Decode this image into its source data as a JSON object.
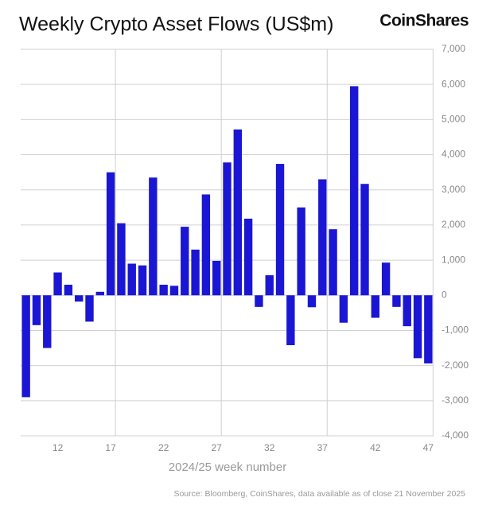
{
  "chart_data": {
    "type": "bar",
    "title": "Weekly Crypto Asset Flows (US$m)",
    "brand": "CoinShares",
    "x_label": "2024/25 week number",
    "source": "Source: Bloomberg, CoinShares, data available as of close 21 November 2025",
    "categories": [
      null,
      null,
      null,
      "12",
      null,
      null,
      null,
      null,
      "17",
      null,
      null,
      null,
      null,
      "22",
      null,
      null,
      null,
      null,
      "27",
      null,
      null,
      null,
      null,
      "32",
      null,
      null,
      null,
      null,
      "37",
      null,
      null,
      null,
      null,
      "42",
      null,
      null,
      null,
      null,
      "47"
    ],
    "values": [
      -2900,
      -850,
      -1500,
      650,
      300,
      -180,
      -750,
      100,
      3500,
      2050,
      900,
      850,
      3350,
      300,
      270,
      1950,
      1300,
      2870,
      980,
      3780,
      4720,
      2180,
      -330,
      570,
      3740,
      -1420,
      2500,
      -340,
      3300,
      1880,
      -780,
      5950,
      3170,
      -640,
      930,
      -330,
      -880,
      -1790,
      -1940
    ],
    "color": "#1b16d4",
    "ylim": [
      -4000,
      7000
    ],
    "yticks": [
      {
        "value": -4000,
        "label": "-4,000"
      },
      {
        "value": -3000,
        "label": "-3,000"
      },
      {
        "value": -2000,
        "label": "-2,000"
      },
      {
        "value": -1000,
        "label": "-1,000"
      },
      0,
      {
        "value": 1000,
        "label": "1,000"
      },
      {
        "value": 2000,
        "label": "2,000"
      },
      {
        "value": 3000,
        "label": "3,000"
      },
      {
        "value": 4000,
        "label": "4,000"
      },
      {
        "value": 5000,
        "label": "5,000"
      },
      {
        "value": 6000,
        "label": "6,000"
      },
      {
        "value": 7000,
        "label": "7,000"
      }
    ],
    "grid": true
  }
}
